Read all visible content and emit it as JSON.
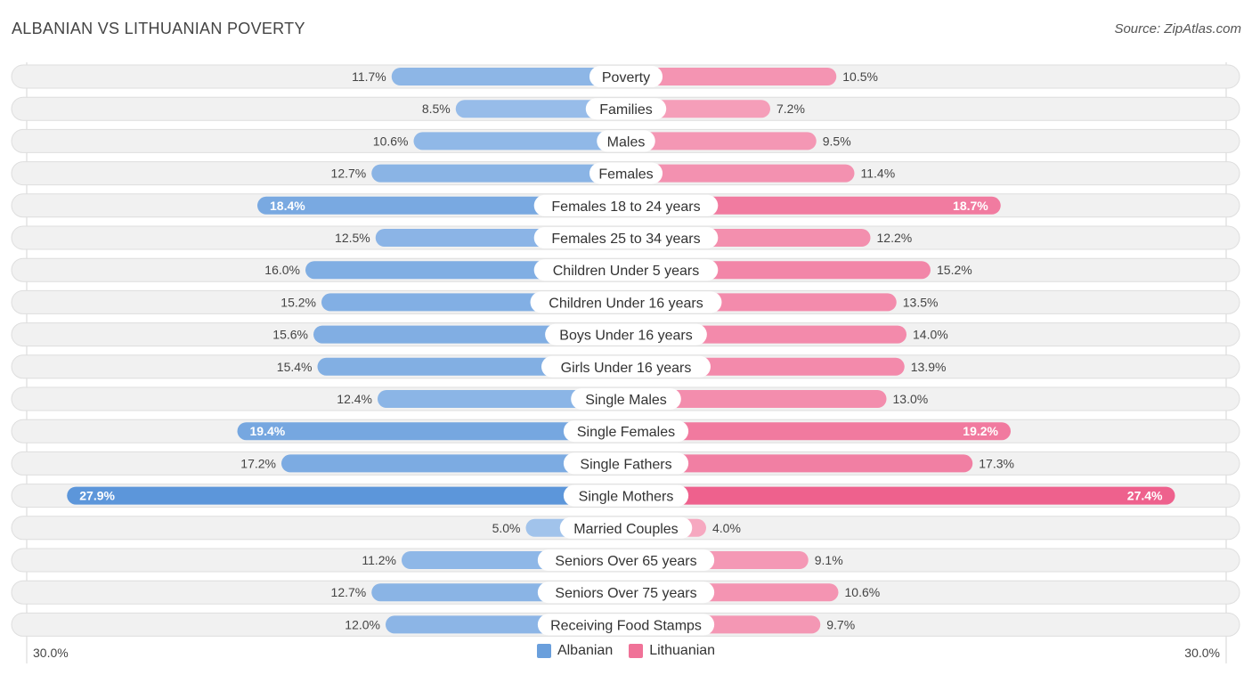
{
  "title": "ALBANIAN VS LITHUANIAN POVERTY",
  "source": "Source: ZipAtlas.com",
  "axis": {
    "left_label": "30.0%",
    "right_label": "30.0%"
  },
  "legend": [
    {
      "name": "Albanian",
      "color": "#6a9fdc"
    },
    {
      "name": "Lithuanian",
      "color": "#f07298"
    }
  ],
  "chart_data": {
    "type": "bar",
    "orientation": "horizontal-diverging",
    "title": "ALBANIAN VS LITHUANIAN POVERTY",
    "xlim": [
      0,
      30
    ],
    "categories": [
      "Poverty",
      "Families",
      "Males",
      "Females",
      "Females 18 to 24 years",
      "Females 25 to 34 years",
      "Children Under 5 years",
      "Children Under 16 years",
      "Boys Under 16 years",
      "Girls Under 16 years",
      "Single Males",
      "Single Females",
      "Single Fathers",
      "Single Mothers",
      "Married Couples",
      "Seniors Over 65 years",
      "Seniors Over 75 years",
      "Receiving Food Stamps"
    ],
    "series": [
      {
        "name": "Albanian",
        "values": [
          11.7,
          8.5,
          10.6,
          12.7,
          18.4,
          12.5,
          16.0,
          15.2,
          15.6,
          15.4,
          12.4,
          19.4,
          17.2,
          27.9,
          5.0,
          11.2,
          12.7,
          12.0
        ],
        "labels": [
          "11.7%",
          "8.5%",
          "10.6%",
          "12.7%",
          "18.4%",
          "12.5%",
          "16.0%",
          "15.2%",
          "15.6%",
          "15.4%",
          "12.4%",
          "19.4%",
          "17.2%",
          "27.9%",
          "5.0%",
          "11.2%",
          "12.7%",
          "12.0%"
        ]
      },
      {
        "name": "Lithuanian",
        "values": [
          10.5,
          7.2,
          9.5,
          11.4,
          18.7,
          12.2,
          15.2,
          13.5,
          14.0,
          13.9,
          13.0,
          19.2,
          17.3,
          27.4,
          4.0,
          9.1,
          10.6,
          9.7
        ],
        "labels": [
          "10.5%",
          "7.2%",
          "9.5%",
          "11.4%",
          "18.7%",
          "12.2%",
          "15.2%",
          "13.5%",
          "14.0%",
          "13.9%",
          "13.0%",
          "19.2%",
          "17.3%",
          "27.4%",
          "4.0%",
          "9.1%",
          "10.6%",
          "9.7%"
        ]
      }
    ]
  }
}
